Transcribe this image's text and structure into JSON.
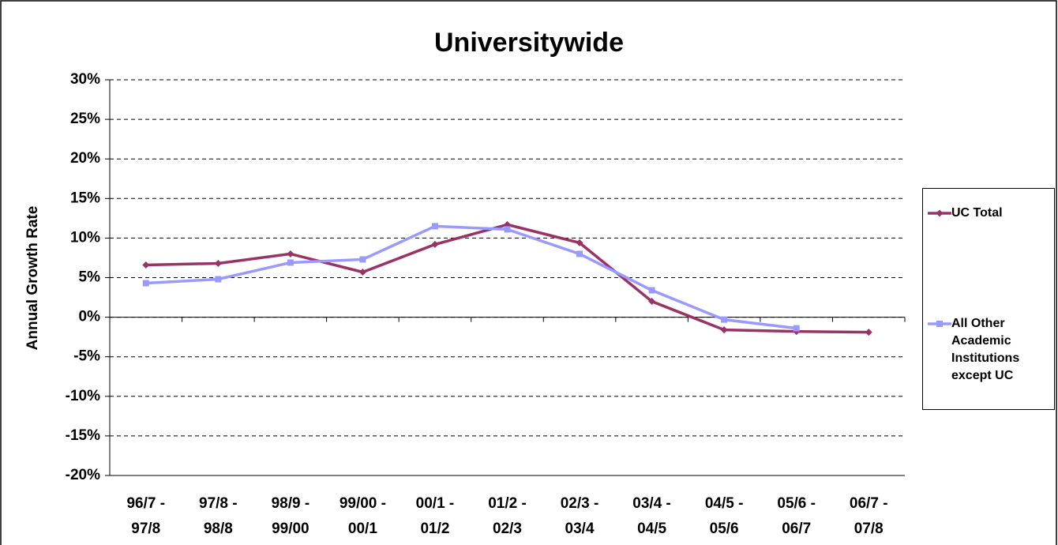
{
  "chart_data": {
    "type": "line",
    "title": "Universitywide",
    "y_label": "Annual Growth Rate",
    "categories": [
      [
        "96/7 -",
        "97/8"
      ],
      [
        "97/8 -",
        "98/8"
      ],
      [
        "98/9 -",
        "99/00"
      ],
      [
        "99/00 -",
        "00/1"
      ],
      [
        "00/1 -",
        "01/2"
      ],
      [
        "01/2 -",
        "02/3"
      ],
      [
        "02/3 -",
        "03/4"
      ],
      [
        "03/4 -",
        "04/5"
      ],
      [
        "04/5 -",
        "05/6"
      ],
      [
        "05/6 -",
        "06/7"
      ],
      [
        "06/7 -",
        "07/8"
      ]
    ],
    "series": [
      {
        "name": "UC Total",
        "color": "#993366",
        "marker": "diamond",
        "values": [
          6.6,
          6.8,
          8.0,
          5.7,
          9.2,
          11.7,
          9.4,
          2.0,
          -1.6,
          -1.8,
          -1.9
        ]
      },
      {
        "name": "All Other Academic Institutions except UC",
        "color": "#9999ff",
        "marker": "square",
        "values": [
          4.3,
          4.8,
          6.9,
          7.3,
          11.5,
          11.1,
          8.0,
          3.4,
          -0.3,
          -1.4,
          null
        ]
      }
    ],
    "ylim": [
      -20,
      30
    ],
    "yticks": [
      {
        "value": -20,
        "label": "-20%"
      },
      {
        "value": -15,
        "label": "-15%"
      },
      {
        "value": -10,
        "label": "-10%"
      },
      {
        "value": -5,
        "label": "-5%"
      },
      {
        "value": 0,
        "label": "0%"
      },
      {
        "value": 5,
        "label": "5%"
      },
      {
        "value": 10,
        "label": "10%"
      },
      {
        "value": 15,
        "label": "15%"
      },
      {
        "value": 20,
        "label": "20%"
      },
      {
        "value": 25,
        "label": "25%"
      },
      {
        "value": 30,
        "label": "30%"
      }
    ],
    "grid": true,
    "legend": "right"
  }
}
